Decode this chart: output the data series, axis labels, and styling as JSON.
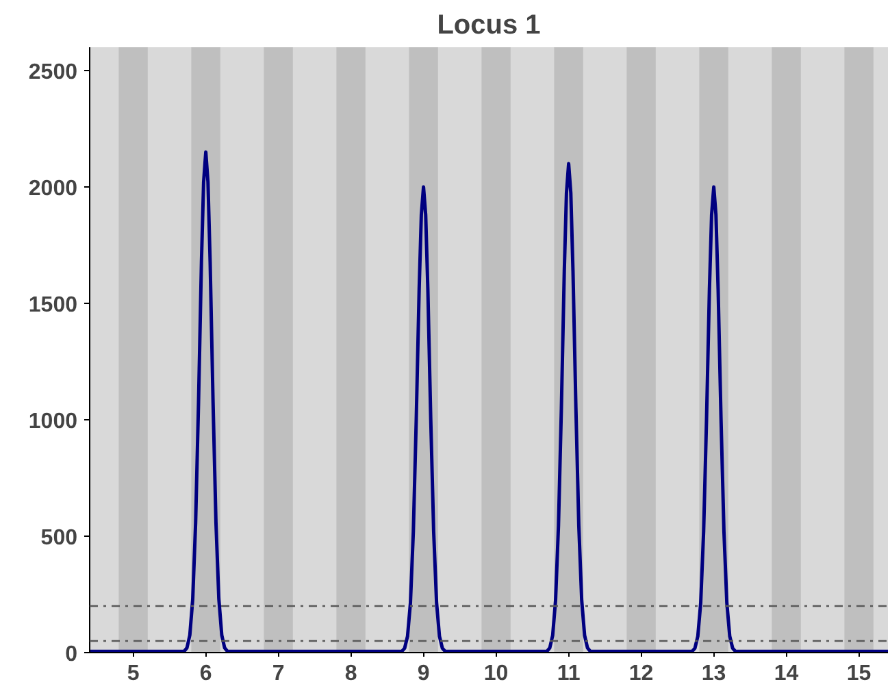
{
  "chart_data": {
    "type": "line",
    "title": "Locus 1",
    "x": [
      4.4,
      5.7,
      5.74,
      5.78,
      5.82,
      5.86,
      5.9,
      5.94,
      5.97,
      6,
      6.03,
      6.06,
      6.1,
      6.14,
      6.18,
      6.22,
      6.26,
      6.3,
      8.7,
      8.74,
      8.78,
      8.82,
      8.86,
      8.9,
      8.94,
      8.97,
      9,
      9.03,
      9.06,
      9.1,
      9.14,
      9.18,
      9.22,
      9.26,
      9.3,
      10.7,
      10.74,
      10.78,
      10.82,
      10.86,
      10.9,
      10.94,
      10.97,
      11,
      11.03,
      11.06,
      11.1,
      11.14,
      11.18,
      11.22,
      11.26,
      11.3,
      12.7,
      12.74,
      12.78,
      12.82,
      12.86,
      12.9,
      12.94,
      12.97,
      13,
      13.03,
      13.06,
      13.1,
      13.14,
      13.18,
      13.22,
      13.26,
      13.3,
      15.4
    ],
    "series": [
      {
        "color": "#000080",
        "values": [
          5,
          5,
          20,
          75,
          230,
          559,
          1075,
          1677,
          2021,
          2150,
          2021,
          1677,
          1075,
          559,
          230,
          75,
          20,
          5,
          5,
          19,
          70,
          214,
          520,
          1000,
          1560,
          1880,
          2000,
          1880,
          1560,
          1000,
          520,
          214,
          70,
          19,
          5,
          5,
          20,
          74,
          225,
          546,
          1050,
          1638,
          1974,
          2100,
          1974,
          1638,
          1050,
          546,
          225,
          74,
          20,
          5,
          5,
          19,
          70,
          214,
          520,
          1000,
          1560,
          1880,
          2000,
          1880,
          1560,
          1000,
          520,
          214,
          70,
          19,
          5,
          5
        ]
      }
    ],
    "xlim": [
      4.4,
      15.4
    ],
    "xticks": [
      5,
      6,
      7,
      8,
      9,
      10,
      11,
      12,
      13,
      14,
      15
    ],
    "ylim": [
      0,
      2600
    ],
    "yticks": [
      0,
      500,
      1000,
      1500,
      2000,
      2500
    ],
    "grid": false,
    "marker": "none",
    "line_style": "solid",
    "ref_lines": [
      {
        "axis": "y",
        "value": 200,
        "color": "#595959",
        "line_style": "dashed"
      },
      {
        "axis": "y",
        "value": 50,
        "color": "#595959",
        "line_style": "dashed"
      }
    ],
    "bands": [
      {
        "axis": "x",
        "from": 4.8,
        "to": 5.2,
        "color": "#bfbfbf"
      },
      {
        "axis": "x",
        "from": 5.8,
        "to": 6.2,
        "color": "#bfbfbf"
      },
      {
        "axis": "x",
        "from": 6.8,
        "to": 7.2,
        "color": "#bfbfbf"
      },
      {
        "axis": "x",
        "from": 7.8,
        "to": 8.2,
        "color": "#bfbfbf"
      },
      {
        "axis": "x",
        "from": 8.8,
        "to": 9.2,
        "color": "#bfbfbf"
      },
      {
        "axis": "x",
        "from": 9.8,
        "to": 10.2,
        "color": "#bfbfbf"
      },
      {
        "axis": "x",
        "from": 10.8,
        "to": 11.2,
        "color": "#bfbfbf"
      },
      {
        "axis": "x",
        "from": 11.8,
        "to": 12.2,
        "color": "#bfbfbf"
      },
      {
        "axis": "x",
        "from": 12.8,
        "to": 13.2,
        "color": "#bfbfbf"
      },
      {
        "axis": "x",
        "from": 13.8,
        "to": 14.2,
        "color": "#bfbfbf"
      },
      {
        "axis": "x",
        "from": 14.8,
        "to": 15.2,
        "color": "#bfbfbf"
      }
    ]
  }
}
